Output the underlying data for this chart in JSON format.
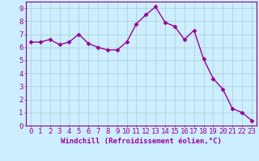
{
  "x": [
    0,
    1,
    2,
    3,
    4,
    5,
    6,
    7,
    8,
    9,
    10,
    11,
    12,
    13,
    14,
    15,
    16,
    17,
    18,
    19,
    20,
    21,
    22,
    23
  ],
  "y": [
    6.4,
    6.4,
    6.6,
    6.2,
    6.4,
    7.0,
    6.3,
    6.0,
    5.8,
    5.8,
    6.4,
    7.8,
    8.5,
    9.1,
    7.9,
    7.6,
    6.6,
    7.3,
    5.1,
    3.6,
    2.8,
    1.3,
    1.0,
    0.4
  ],
  "line_color": "#990099",
  "marker_color": "#990099",
  "bg_color": "#cceeff",
  "grid_color": "#aacccc",
  "axis_color": "#880088",
  "tick_color": "#990099",
  "xlabel": "Windchill (Refroidissement éolien,°C)",
  "xlim": [
    -0.5,
    23.5
  ],
  "ylim": [
    0,
    9.5
  ],
  "yticks": [
    0,
    1,
    2,
    3,
    4,
    5,
    6,
    7,
    8,
    9
  ],
  "xticks": [
    0,
    1,
    2,
    3,
    4,
    5,
    6,
    7,
    8,
    9,
    10,
    11,
    12,
    13,
    14,
    15,
    16,
    17,
    18,
    19,
    20,
    21,
    22,
    23
  ],
  "font_size": 6.5,
  "marker_size": 2.5,
  "line_width": 1.0
}
